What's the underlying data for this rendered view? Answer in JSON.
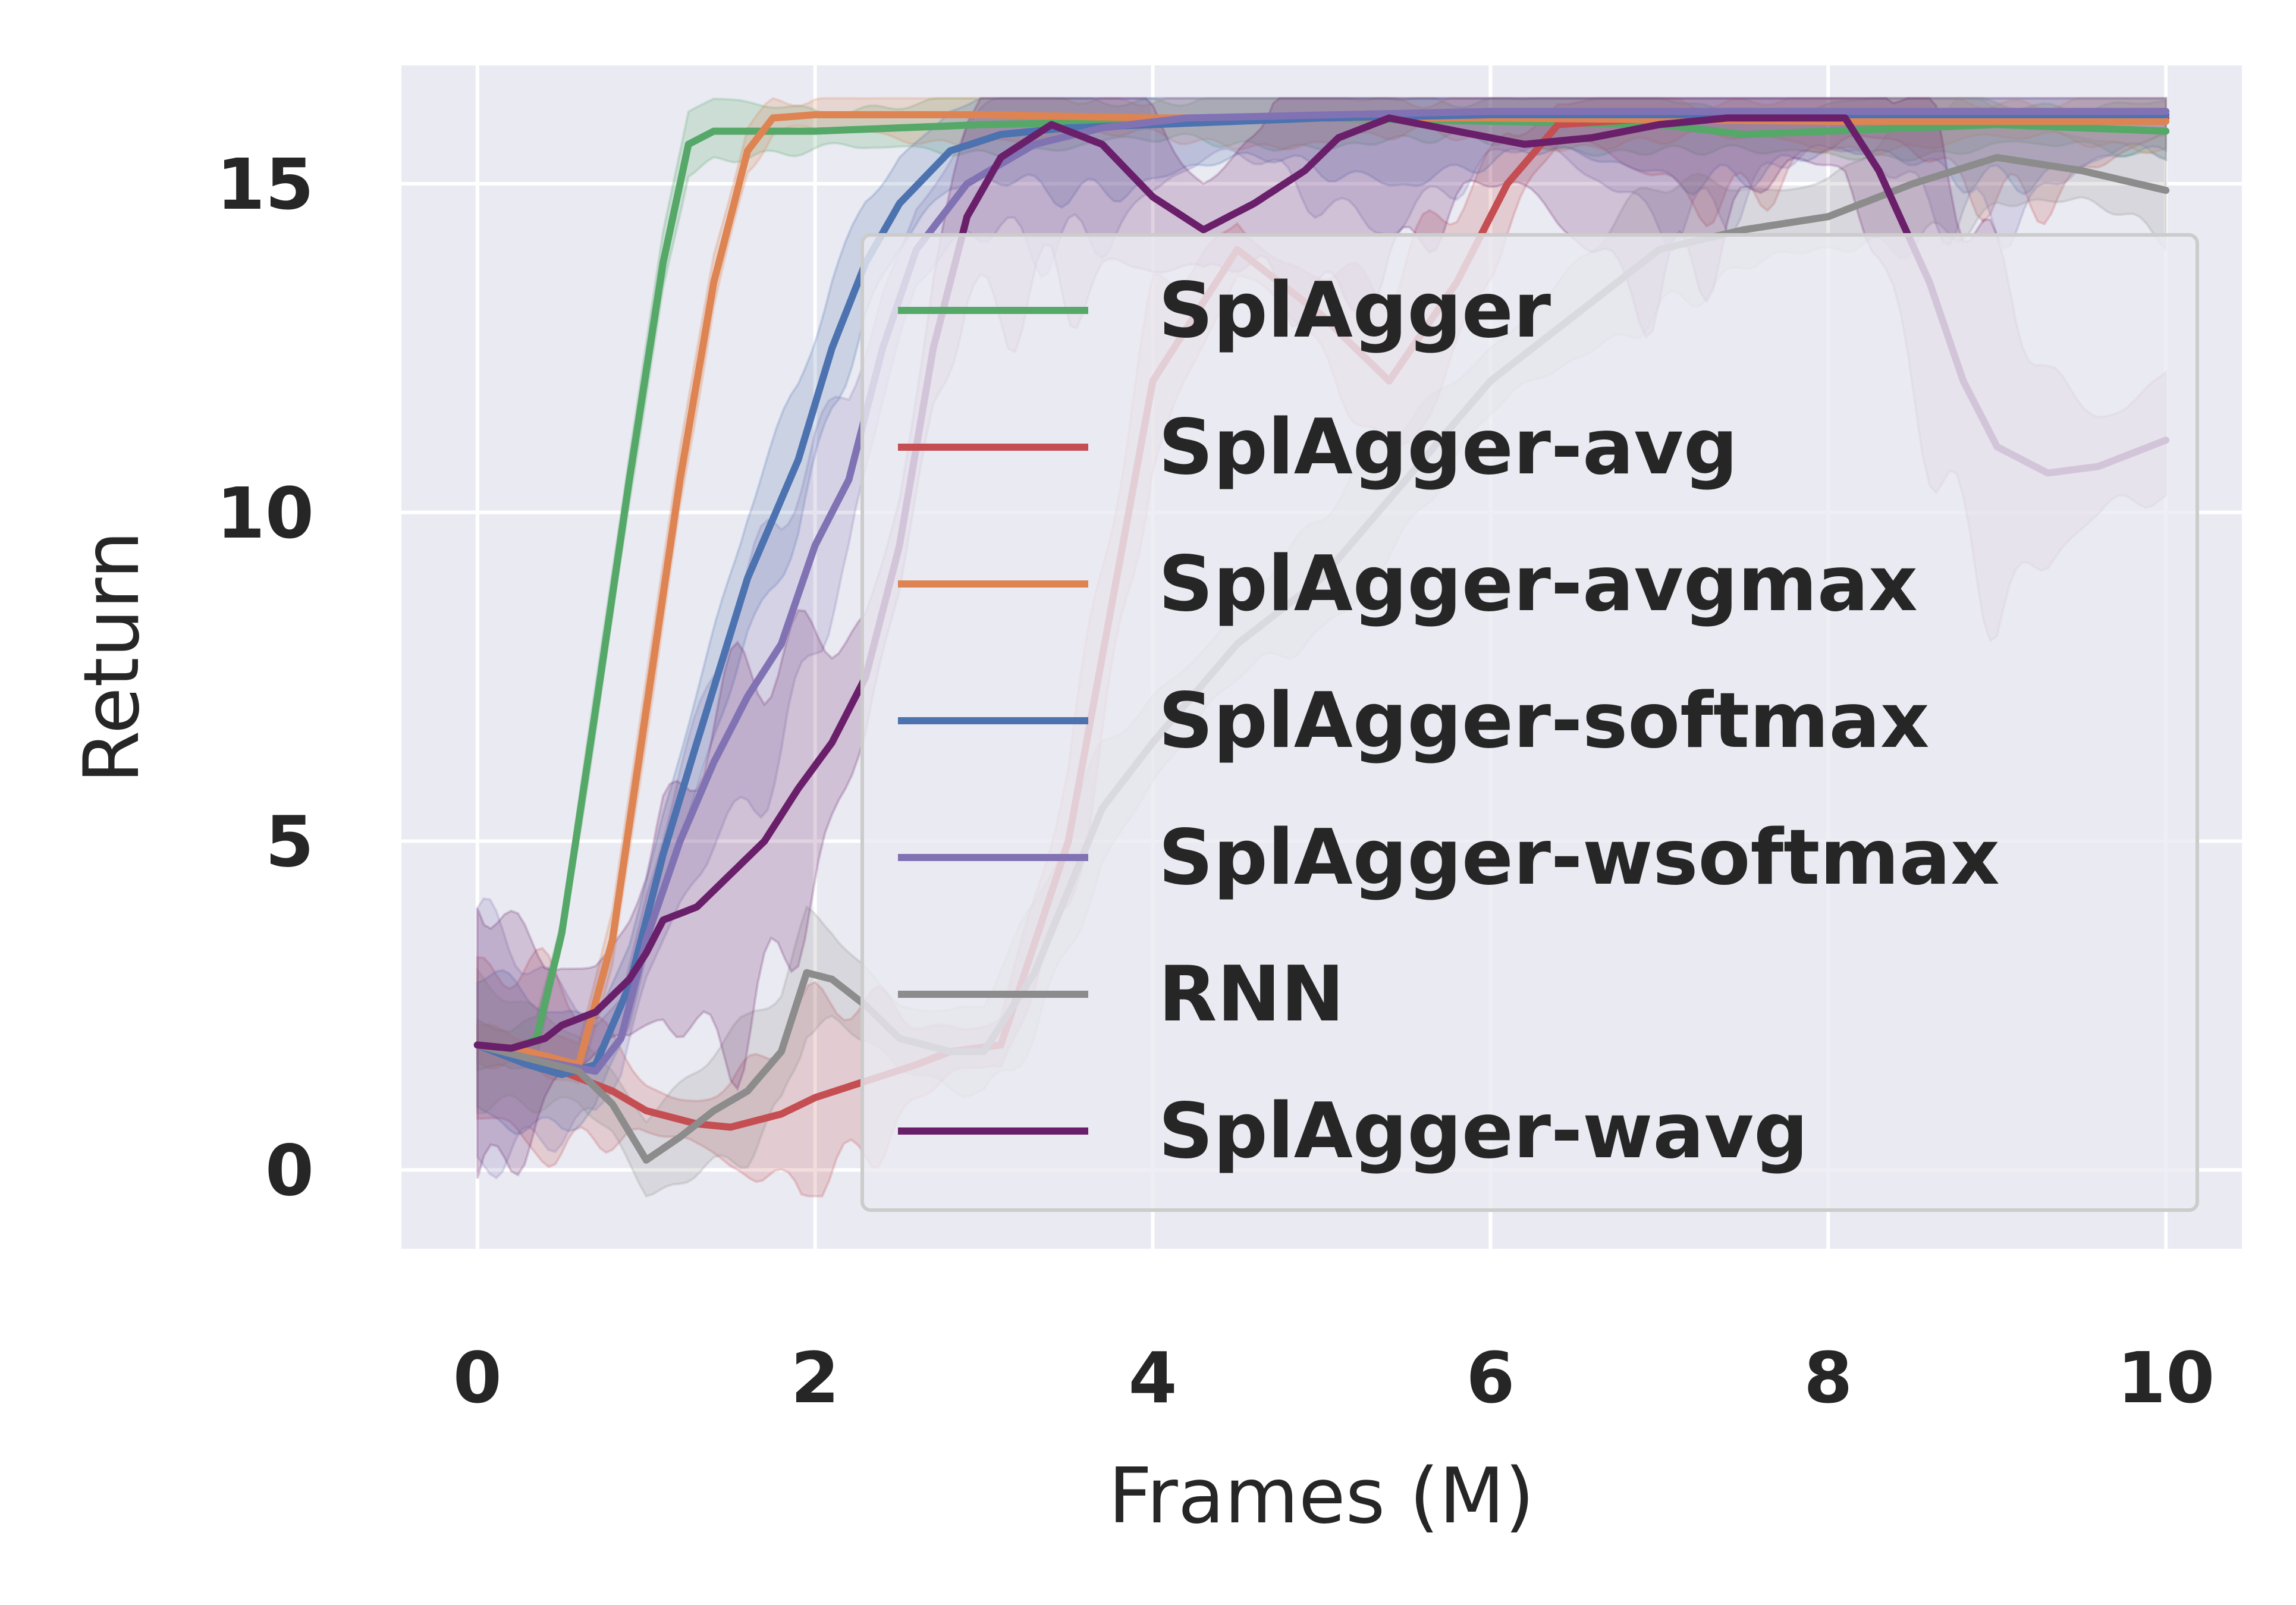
{
  "chart_data": {
    "type": "line",
    "xlabel": "Frames (M)",
    "ylabel": "Return",
    "xlim": [
      -0.45,
      10.45
    ],
    "ylim": [
      -1.2,
      16.8
    ],
    "xticks": [
      0,
      2,
      4,
      6,
      8,
      10
    ],
    "yticks": [
      0,
      5,
      10,
      15
    ],
    "grid": true,
    "legend_position": "right",
    "series": [
      {
        "name": "SplAgger",
        "color": "#55a868",
        "points": [
          [
            0,
            1.9
          ],
          [
            0.2,
            1.8
          ],
          [
            0.35,
            2.0
          ],
          [
            0.5,
            3.6
          ],
          [
            0.7,
            7.0
          ],
          [
            0.9,
            10.5
          ],
          [
            1.1,
            13.8
          ],
          [
            1.25,
            15.6
          ],
          [
            1.4,
            15.8
          ],
          [
            2,
            15.8
          ],
          [
            3,
            15.9
          ],
          [
            5,
            16.0
          ],
          [
            7,
            15.9
          ],
          [
            7.5,
            15.75
          ],
          [
            8,
            15.8
          ],
          [
            9,
            15.9
          ],
          [
            10,
            15.8
          ]
        ],
        "band": [
          0.5,
          0.2
        ]
      },
      {
        "name": "SplAgger-avg",
        "color": "#c44e52",
        "points": [
          [
            0,
            1.9
          ],
          [
            0.5,
            1.5
          ],
          [
            0.8,
            1.2
          ],
          [
            1.0,
            0.9
          ],
          [
            1.3,
            0.7
          ],
          [
            1.5,
            0.65
          ],
          [
            1.8,
            0.85
          ],
          [
            2.0,
            1.1
          ],
          [
            2.3,
            1.35
          ],
          [
            2.6,
            1.6
          ],
          [
            2.8,
            1.8
          ],
          [
            3.1,
            1.9
          ],
          [
            3.5,
            5.0
          ],
          [
            4.0,
            12.0
          ],
          [
            4.5,
            14.0
          ],
          [
            5.0,
            13.0
          ],
          [
            5.4,
            12.0
          ],
          [
            5.8,
            13.5
          ],
          [
            6.1,
            15.0
          ],
          [
            6.4,
            15.9
          ],
          [
            7,
            16.0
          ],
          [
            10,
            16.0
          ]
        ],
        "band": [
          0.3,
          1.8
        ]
      },
      {
        "name": "SplAgger-avgmax",
        "color": "#dd8452",
        "points": [
          [
            0,
            1.9
          ],
          [
            0.3,
            1.8
          ],
          [
            0.6,
            1.6
          ],
          [
            0.8,
            3.5
          ],
          [
            1.0,
            7.0
          ],
          [
            1.2,
            10.5
          ],
          [
            1.4,
            13.5
          ],
          [
            1.6,
            15.5
          ],
          [
            1.75,
            16.0
          ],
          [
            2,
            16.05
          ],
          [
            3,
            16.05
          ],
          [
            4,
            16.0
          ],
          [
            6,
            16.0
          ],
          [
            8,
            15.95
          ],
          [
            10,
            15.95
          ]
        ],
        "band": [
          0.5,
          0.15
        ]
      },
      {
        "name": "SplAgger-softmax",
        "color": "#4c72b0",
        "points": [
          [
            0,
            1.9
          ],
          [
            0.3,
            1.6
          ],
          [
            0.5,
            1.45
          ],
          [
            0.7,
            1.6
          ],
          [
            0.9,
            2.8
          ],
          [
            1.1,
            4.8
          ],
          [
            1.3,
            6.5
          ],
          [
            1.6,
            9.0
          ],
          [
            1.9,
            10.8
          ],
          [
            2.1,
            12.5
          ],
          [
            2.3,
            13.8
          ],
          [
            2.5,
            14.7
          ],
          [
            2.8,
            15.5
          ],
          [
            3.1,
            15.75
          ],
          [
            3.5,
            15.85
          ],
          [
            4,
            15.9
          ],
          [
            5,
            16.0
          ],
          [
            6,
            16.05
          ],
          [
            10,
            16.05
          ]
        ],
        "band": [
          0.6,
          1.3
        ]
      },
      {
        "name": "SplAgger-wsoftmax",
        "color": "#8172b3",
        "points": [
          [
            0,
            1.9
          ],
          [
            0.3,
            1.7
          ],
          [
            0.5,
            1.6
          ],
          [
            0.7,
            1.5
          ],
          [
            0.85,
            2.0
          ],
          [
            1.0,
            3.5
          ],
          [
            1.2,
            5.0
          ],
          [
            1.4,
            6.2
          ],
          [
            1.6,
            7.2
          ],
          [
            1.8,
            8.0
          ],
          [
            2.0,
            9.5
          ],
          [
            2.2,
            10.5
          ],
          [
            2.4,
            12.5
          ],
          [
            2.6,
            14.0
          ],
          [
            2.9,
            15.0
          ],
          [
            3.3,
            15.6
          ],
          [
            3.7,
            15.85
          ],
          [
            4.2,
            16.0
          ],
          [
            6,
            16.1
          ],
          [
            10,
            16.1
          ]
        ],
        "band": [
          0.6,
          2.3
        ]
      },
      {
        "name": "RNN",
        "color": "#8c8c8c",
        "points": [
          [
            0,
            1.9
          ],
          [
            0.3,
            1.7
          ],
          [
            0.6,
            1.5
          ],
          [
            0.8,
            1.0
          ],
          [
            1.0,
            0.15
          ],
          [
            1.2,
            0.5
          ],
          [
            1.4,
            0.9
          ],
          [
            1.6,
            1.2
          ],
          [
            1.8,
            1.8
          ],
          [
            1.95,
            3.0
          ],
          [
            2.1,
            2.9
          ],
          [
            2.3,
            2.5
          ],
          [
            2.5,
            2.0
          ],
          [
            2.8,
            1.8
          ],
          [
            3.0,
            1.8
          ],
          [
            3.3,
            3.0
          ],
          [
            3.7,
            5.5
          ],
          [
            4.0,
            6.5
          ],
          [
            4.5,
            8.0
          ],
          [
            5,
            9.0
          ],
          [
            5.5,
            10.5
          ],
          [
            6,
            12.0
          ],
          [
            6.5,
            13.0
          ],
          [
            7,
            14.0
          ],
          [
            7.5,
            14.3
          ],
          [
            8,
            14.5
          ],
          [
            8.5,
            15.0
          ],
          [
            9,
            15.4
          ],
          [
            9.5,
            15.2
          ],
          [
            10,
            14.9
          ]
        ],
        "band": [
          0.5,
          1.2
        ]
      },
      {
        "name": "SplAgger-wavg",
        "color": "#6a1f6a",
        "points": [
          [
            0,
            1.9
          ],
          [
            0.2,
            1.85
          ],
          [
            0.4,
            2.0
          ],
          [
            0.5,
            2.2
          ],
          [
            0.7,
            2.4
          ],
          [
            0.9,
            2.9
          ],
          [
            1.0,
            3.3
          ],
          [
            1.1,
            3.8
          ],
          [
            1.3,
            4.0
          ],
          [
            1.5,
            4.5
          ],
          [
            1.7,
            5.0
          ],
          [
            1.9,
            5.8
          ],
          [
            2.1,
            6.5
          ],
          [
            2.3,
            7.5
          ],
          [
            2.5,
            9.5
          ],
          [
            2.7,
            12.5
          ],
          [
            2.9,
            14.5
          ],
          [
            3.1,
            15.4
          ],
          [
            3.4,
            15.9
          ],
          [
            3.7,
            15.6
          ],
          [
            4.0,
            14.8
          ],
          [
            4.3,
            14.3
          ],
          [
            4.6,
            14.7
          ],
          [
            4.9,
            15.2
          ],
          [
            5.1,
            15.7
          ],
          [
            5.4,
            16.0
          ],
          [
            5.8,
            15.8
          ],
          [
            6.2,
            15.6
          ],
          [
            6.6,
            15.7
          ],
          [
            7.0,
            15.9
          ],
          [
            7.4,
            16.0
          ],
          [
            7.8,
            16.0
          ],
          [
            8.1,
            16.0
          ],
          [
            8.3,
            15.2
          ],
          [
            8.6,
            13.5
          ],
          [
            8.8,
            12.0
          ],
          [
            9.0,
            11.0
          ],
          [
            9.3,
            10.6
          ],
          [
            9.6,
            10.7
          ],
          [
            10,
            11.1
          ]
        ],
        "band": [
          0.7,
          3.5
        ]
      }
    ]
  }
}
